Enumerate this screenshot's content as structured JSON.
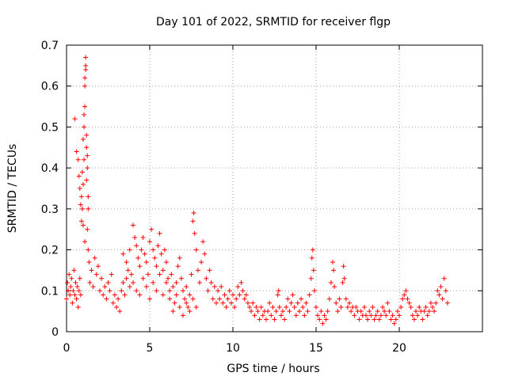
{
  "chart_data": {
    "type": "scatter",
    "title": "Day 101 of 2022, SRMTID for receiver flgp",
    "xlabel": "GPS time / hours",
    "ylabel": "SRMTID / TECUs",
    "xlim": [
      0,
      25
    ],
    "ylim": [
      0,
      0.7
    ],
    "xticks": [
      0,
      5,
      10,
      15,
      20
    ],
    "yticks": [
      0,
      0.1,
      0.2,
      0.3,
      0.4,
      0.5,
      0.6,
      0.7
    ],
    "xtick_labels": [
      "0",
      "5",
      "10",
      "15",
      "20"
    ],
    "ytick_labels": [
      "0",
      "0.1",
      "0.2",
      "0.3",
      "0.4",
      "0.5",
      "0.6",
      "0.7"
    ],
    "grid": true,
    "marker": "+",
    "color": "#ff0000",
    "series": [
      {
        "name": "SRMTID",
        "points": [
          [
            0.0,
            0.08
          ],
          [
            0.05,
            0.12
          ],
          [
            0.1,
            0.1
          ],
          [
            0.15,
            0.14
          ],
          [
            0.2,
            0.09
          ],
          [
            0.25,
            0.11
          ],
          [
            0.3,
            0.13
          ],
          [
            0.35,
            0.07
          ],
          [
            0.4,
            0.1
          ],
          [
            0.45,
            0.15
          ],
          [
            0.5,
            0.09
          ],
          [
            0.55,
            0.12
          ],
          [
            0.6,
            0.08
          ],
          [
            0.65,
            0.11
          ],
          [
            0.7,
            0.06
          ],
          [
            0.75,
            0.1
          ],
          [
            0.8,
            0.13
          ],
          [
            0.85,
            0.09
          ],
          [
            0.5,
            0.52
          ],
          [
            0.6,
            0.44
          ],
          [
            0.7,
            0.42
          ],
          [
            0.75,
            0.38
          ],
          [
            0.8,
            0.35
          ],
          [
            0.85,
            0.31
          ],
          [
            0.9,
            0.27
          ],
          [
            0.95,
            0.3
          ],
          [
            1.0,
            0.36
          ],
          [
            1.0,
            0.47
          ],
          [
            1.05,
            0.5
          ],
          [
            1.05,
            0.53
          ],
          [
            1.1,
            0.55
          ],
          [
            1.1,
            0.6
          ],
          [
            1.1,
            0.62
          ],
          [
            1.15,
            0.64
          ],
          [
            1.15,
            0.65
          ],
          [
            1.15,
            0.67
          ],
          [
            1.2,
            0.48
          ],
          [
            1.2,
            0.45
          ],
          [
            1.25,
            0.43
          ],
          [
            1.25,
            0.4
          ],
          [
            1.2,
            0.37
          ],
          [
            1.3,
            0.33
          ],
          [
            1.3,
            0.3
          ],
          [
            1.25,
            0.25
          ],
          [
            1.3,
            0.2
          ],
          [
            1.35,
            0.17
          ],
          [
            1.1,
            0.22
          ],
          [
            1.0,
            0.26
          ],
          [
            0.9,
            0.33
          ],
          [
            0.95,
            0.39
          ],
          [
            1.05,
            0.42
          ],
          [
            1.4,
            0.12
          ],
          [
            1.5,
            0.15
          ],
          [
            1.6,
            0.11
          ],
          [
            1.7,
            0.18
          ],
          [
            1.8,
            0.14
          ],
          [
            1.9,
            0.16
          ],
          [
            2.0,
            0.1
          ],
          [
            2.1,
            0.13
          ],
          [
            2.2,
            0.09
          ],
          [
            2.3,
            0.11
          ],
          [
            2.4,
            0.08
          ],
          [
            2.5,
            0.12
          ],
          [
            2.6,
            0.1
          ],
          [
            2.7,
            0.14
          ],
          [
            2.8,
            0.07
          ],
          [
            2.9,
            0.09
          ],
          [
            3.0,
            0.06
          ],
          [
            3.1,
            0.08
          ],
          [
            3.2,
            0.05
          ],
          [
            3.3,
            0.1
          ],
          [
            3.4,
            0.12
          ],
          [
            3.5,
            0.09
          ],
          [
            3.6,
            0.13
          ],
          [
            3.7,
            0.15
          ],
          [
            3.8,
            0.11
          ],
          [
            3.9,
            0.14
          ],
          [
            3.4,
            0.19
          ],
          [
            3.6,
            0.17
          ],
          [
            3.8,
            0.2
          ],
          [
            4.0,
            0.26
          ],
          [
            4.1,
            0.23
          ],
          [
            4.2,
            0.21
          ],
          [
            4.3,
            0.18
          ],
          [
            4.4,
            0.16
          ],
          [
            4.5,
            0.2
          ],
          [
            4.6,
            0.23
          ],
          [
            4.7,
            0.19
          ],
          [
            4.8,
            0.17
          ],
          [
            4.9,
            0.14
          ],
          [
            5.0,
            0.22
          ],
          [
            5.1,
            0.25
          ],
          [
            5.2,
            0.2
          ],
          [
            5.3,
            0.18
          ],
          [
            5.4,
            0.16
          ],
          [
            5.5,
            0.21
          ],
          [
            5.6,
            0.24
          ],
          [
            5.7,
            0.19
          ],
          [
            5.8,
            0.15
          ],
          [
            5.9,
            0.2
          ],
          [
            6.0,
            0.17
          ],
          [
            6.1,
            0.13
          ],
          [
            6.2,
            0.1
          ],
          [
            6.3,
            0.14
          ],
          [
            6.4,
            0.11
          ],
          [
            6.5,
            0.07
          ],
          [
            6.6,
            0.12
          ],
          [
            6.7,
            0.16
          ],
          [
            6.8,
            0.18
          ],
          [
            6.9,
            0.13
          ],
          [
            7.0,
            0.1
          ],
          [
            7.1,
            0.08
          ],
          [
            7.2,
            0.11
          ],
          [
            7.3,
            0.06
          ],
          [
            7.4,
            0.09
          ],
          [
            7.5,
            0.14
          ],
          [
            7.6,
            0.27
          ],
          [
            7.65,
            0.29
          ],
          [
            7.7,
            0.24
          ],
          [
            7.8,
            0.2
          ],
          [
            7.9,
            0.15
          ],
          [
            8.0,
            0.12
          ],
          [
            8.1,
            0.17
          ],
          [
            8.2,
            0.22
          ],
          [
            8.3,
            0.19
          ],
          [
            8.4,
            0.13
          ],
          [
            8.5,
            0.1
          ],
          [
            8.6,
            0.15
          ],
          [
            8.7,
            0.12
          ],
          [
            8.8,
            0.08
          ],
          [
            8.9,
            0.11
          ],
          [
            9.0,
            0.07
          ],
          [
            4.0,
            0.12
          ],
          [
            4.2,
            0.1
          ],
          [
            4.4,
            0.09
          ],
          [
            4.6,
            0.13
          ],
          [
            4.8,
            0.11
          ],
          [
            5.0,
            0.08
          ],
          [
            5.2,
            0.12
          ],
          [
            5.4,
            0.1
          ],
          [
            5.6,
            0.14
          ],
          [
            5.8,
            0.09
          ],
          [
            6.0,
            0.12
          ],
          [
            6.2,
            0.08
          ],
          [
            6.4,
            0.05
          ],
          [
            6.6,
            0.09
          ],
          [
            6.8,
            0.06
          ],
          [
            7.0,
            0.04
          ],
          [
            7.2,
            0.07
          ],
          [
            7.4,
            0.05
          ],
          [
            7.6,
            0.08
          ],
          [
            7.8,
            0.06
          ],
          [
            9.1,
            0.1
          ],
          [
            9.2,
            0.08
          ],
          [
            9.3,
            0.11
          ],
          [
            9.4,
            0.07
          ],
          [
            9.5,
            0.09
          ],
          [
            9.6,
            0.06
          ],
          [
            9.7,
            0.08
          ],
          [
            9.8,
            0.1
          ],
          [
            9.9,
            0.07
          ],
          [
            10.0,
            0.09
          ],
          [
            10.1,
            0.06
          ],
          [
            10.2,
            0.08
          ],
          [
            10.3,
            0.11
          ],
          [
            10.4,
            0.09
          ],
          [
            10.5,
            0.12
          ],
          [
            10.6,
            0.1
          ],
          [
            10.7,
            0.08
          ],
          [
            10.8,
            0.09
          ],
          [
            10.9,
            0.07
          ],
          [
            11.0,
            0.06
          ],
          [
            11.1,
            0.05
          ],
          [
            11.2,
            0.07
          ],
          [
            11.3,
            0.04
          ],
          [
            11.4,
            0.06
          ],
          [
            11.5,
            0.05
          ],
          [
            11.6,
            0.03
          ],
          [
            11.7,
            0.06
          ],
          [
            11.8,
            0.04
          ],
          [
            11.9,
            0.05
          ],
          [
            12.0,
            0.03
          ],
          [
            12.1,
            0.05
          ],
          [
            12.2,
            0.07
          ],
          [
            12.3,
            0.04
          ],
          [
            12.4,
            0.06
          ],
          [
            12.5,
            0.03
          ],
          [
            12.6,
            0.05
          ],
          [
            12.7,
            0.09
          ],
          [
            12.75,
            0.1
          ],
          [
            12.8,
            0.06
          ],
          [
            12.9,
            0.04
          ],
          [
            13.0,
            0.05
          ],
          [
            13.1,
            0.03
          ],
          [
            13.2,
            0.06
          ],
          [
            13.3,
            0.08
          ],
          [
            13.4,
            0.05
          ],
          [
            13.5,
            0.07
          ],
          [
            13.6,
            0.09
          ],
          [
            13.7,
            0.06
          ],
          [
            13.8,
            0.04
          ],
          [
            13.9,
            0.07
          ],
          [
            14.0,
            0.05
          ],
          [
            14.1,
            0.08
          ],
          [
            14.2,
            0.06
          ],
          [
            14.3,
            0.04
          ],
          [
            14.4,
            0.07
          ],
          [
            14.5,
            0.05
          ],
          [
            14.6,
            0.09
          ],
          [
            14.7,
            0.13
          ],
          [
            14.75,
            0.18
          ],
          [
            14.8,
            0.2
          ],
          [
            14.85,
            0.15
          ],
          [
            14.9,
            0.1
          ],
          [
            15.0,
            0.06
          ],
          [
            15.1,
            0.04
          ],
          [
            15.2,
            0.03
          ],
          [
            15.3,
            0.05
          ],
          [
            15.4,
            0.02
          ],
          [
            15.5,
            0.04
          ],
          [
            15.6,
            0.03
          ],
          [
            15.7,
            0.05
          ],
          [
            15.8,
            0.08
          ],
          [
            15.9,
            0.12
          ],
          [
            16.0,
            0.17
          ],
          [
            16.05,
            0.15
          ],
          [
            16.1,
            0.11
          ],
          [
            16.2,
            0.07
          ],
          [
            16.3,
            0.05
          ],
          [
            16.4,
            0.08
          ],
          [
            16.5,
            0.06
          ],
          [
            16.6,
            0.12
          ],
          [
            16.65,
            0.16
          ],
          [
            16.7,
            0.13
          ],
          [
            16.8,
            0.08
          ],
          [
            16.9,
            0.06
          ],
          [
            17.0,
            0.07
          ],
          [
            17.1,
            0.05
          ],
          [
            17.2,
            0.06
          ],
          [
            17.3,
            0.04
          ],
          [
            17.4,
            0.06
          ],
          [
            17.5,
            0.05
          ],
          [
            17.6,
            0.03
          ],
          [
            17.7,
            0.05
          ],
          [
            17.8,
            0.04
          ],
          [
            17.9,
            0.06
          ],
          [
            18.0,
            0.04
          ],
          [
            18.1,
            0.03
          ],
          [
            18.2,
            0.05
          ],
          [
            18.3,
            0.04
          ],
          [
            18.4,
            0.06
          ],
          [
            18.5,
            0.03
          ],
          [
            18.6,
            0.04
          ],
          [
            18.7,
            0.05
          ],
          [
            18.8,
            0.03
          ],
          [
            18.9,
            0.04
          ],
          [
            19.0,
            0.06
          ],
          [
            19.1,
            0.05
          ],
          [
            19.2,
            0.04
          ],
          [
            19.3,
            0.07
          ],
          [
            19.4,
            0.05
          ],
          [
            19.5,
            0.03
          ],
          [
            19.6,
            0.04
          ],
          [
            19.7,
            0.02
          ],
          [
            19.8,
            0.03
          ],
          [
            19.9,
            0.05
          ],
          [
            20.0,
            0.04
          ],
          [
            20.1,
            0.06
          ],
          [
            20.2,
            0.08
          ],
          [
            20.3,
            0.09
          ],
          [
            20.4,
            0.1
          ],
          [
            20.5,
            0.08
          ],
          [
            20.6,
            0.07
          ],
          [
            20.7,
            0.06
          ],
          [
            20.8,
            0.04
          ],
          [
            20.9,
            0.03
          ],
          [
            21.0,
            0.05
          ],
          [
            21.1,
            0.04
          ],
          [
            21.2,
            0.06
          ],
          [
            21.3,
            0.05
          ],
          [
            21.4,
            0.03
          ],
          [
            21.5,
            0.05
          ],
          [
            21.6,
            0.06
          ],
          [
            21.7,
            0.04
          ],
          [
            21.8,
            0.05
          ],
          [
            21.9,
            0.07
          ],
          [
            22.0,
            0.06
          ],
          [
            22.1,
            0.05
          ],
          [
            22.2,
            0.07
          ],
          [
            22.3,
            0.1
          ],
          [
            22.4,
            0.09
          ],
          [
            22.5,
            0.11
          ],
          [
            22.6,
            0.08
          ],
          [
            22.7,
            0.13
          ],
          [
            22.8,
            0.1
          ],
          [
            22.9,
            0.07
          ]
        ]
      }
    ]
  }
}
